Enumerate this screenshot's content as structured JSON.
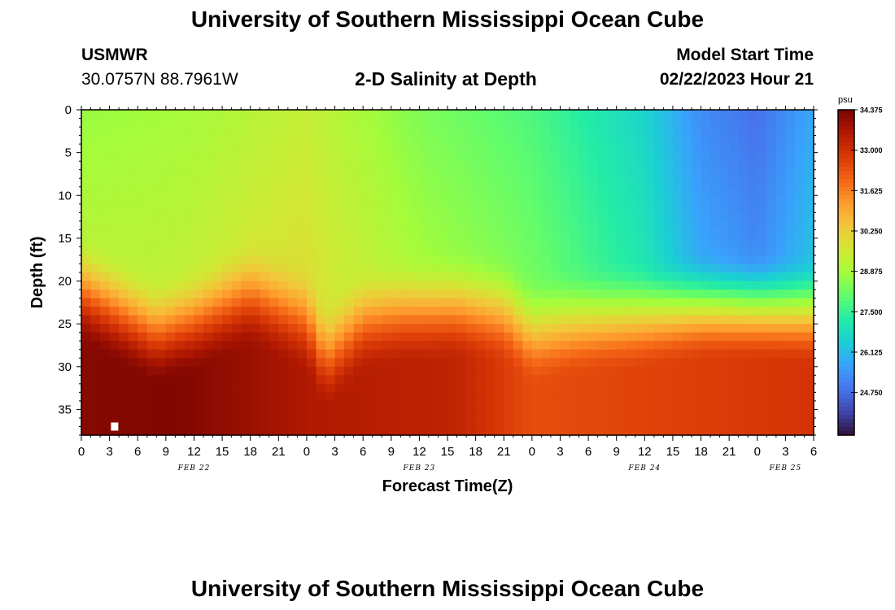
{
  "header": {
    "title": "University of Southern Mississippi Ocean Cube",
    "station": "USMWR",
    "coordinates": "30.0757N  88.7961W",
    "subtitle": "2-D Salinity at Depth",
    "model_start_label": "Model Start Time",
    "model_start_value": "02/22/2023 Hour 21"
  },
  "footer": {
    "title": "University of Southern Mississippi Ocean Cube"
  },
  "colors": {
    "background": "#ffffff",
    "missing_marker": "#ffffff"
  },
  "chart_data": {
    "type": "heatmap",
    "title": "2-D Salinity at Depth",
    "xlabel": "Forecast Time(Z)",
    "ylabel": "Depth (ft)",
    "units": "psu",
    "x_range_hours": [
      0,
      78
    ],
    "x_tick_values": [
      0,
      3,
      6,
      9,
      12,
      15,
      18,
      21,
      24,
      27,
      30,
      33,
      36,
      39,
      42,
      45,
      48,
      51,
      54,
      57,
      60,
      63,
      66,
      69,
      72,
      75,
      78
    ],
    "x_tick_labels": [
      "0",
      "3",
      "6",
      "9",
      "12",
      "15",
      "18",
      "21",
      "0",
      "3",
      "6",
      "9",
      "12",
      "15",
      "18",
      "21",
      "0",
      "3",
      "6",
      "9",
      "12",
      "15",
      "18",
      "21",
      "0",
      "3",
      "6"
    ],
    "day_labels": [
      {
        "label": "FEB 22",
        "hour": 12
      },
      {
        "label": "FEB 23",
        "hour": 36
      },
      {
        "label": "FEB 24",
        "hour": 60
      },
      {
        "label": "FEB 25",
        "hour": 75
      }
    ],
    "y_range_ft": [
      0,
      38
    ],
    "y_tick_values": [
      0,
      5,
      10,
      15,
      20,
      25,
      30,
      35
    ],
    "y_tick_labels": [
      "0",
      "5",
      "10",
      "15",
      "20",
      "25",
      "30",
      "35"
    ],
    "colorbar": {
      "label": "psu",
      "min": 23.3,
      "max": 34.375,
      "ticks": [
        "34.375",
        "33.000",
        "31.625",
        "30.250",
        "28.875",
        "27.500",
        "26.125",
        "24.750"
      ],
      "tick_values": [
        34.375,
        33.0,
        31.625,
        30.25,
        28.875,
        27.5,
        26.125,
        24.75
      ],
      "colors": [
        "#30123b",
        "#4145ab",
        "#4675ed",
        "#39a2fc",
        "#1bcfd4",
        "#24eca6",
        "#61fc6c",
        "#a4fc3b",
        "#d1e834",
        "#f3c63a",
        "#fe9b2d",
        "#f36315",
        "#d93806",
        "#b11901",
        "#7a0402"
      ]
    },
    "grid_resolution": {
      "dx_hours": 1,
      "dy_ft": 1
    },
    "surface_salinity_profile": {
      "hours": [
        0,
        12,
        24,
        36,
        48,
        60,
        66,
        72,
        78
      ],
      "psu": [
        28.7,
        28.9,
        29.4,
        28.4,
        27.8,
        26.6,
        25.3,
        24.8,
        25.8
      ]
    },
    "halocline_depth_profile": {
      "hours": [
        0,
        8,
        12,
        18,
        24,
        26,
        30,
        34,
        40,
        45,
        48,
        52,
        60,
        66,
        72,
        78
      ],
      "depth_ft": [
        16.5,
        21.5,
        20.0,
        17.0,
        20.0,
        24.5,
        20.0,
        19.0,
        18.5,
        19.0,
        21.5,
        20.5,
        19.5,
        18.5,
        18.5,
        19.0
      ]
    },
    "bottom_salinity_profile": {
      "hours": [
        0,
        10,
        24,
        40,
        48,
        60,
        78
      ],
      "psu": [
        34.2,
        34.3,
        33.6,
        33.3,
        32.4,
        32.6,
        32.9
      ]
    },
    "missing_marker": {
      "hour": 3.5,
      "depth_ft": 37
    }
  }
}
